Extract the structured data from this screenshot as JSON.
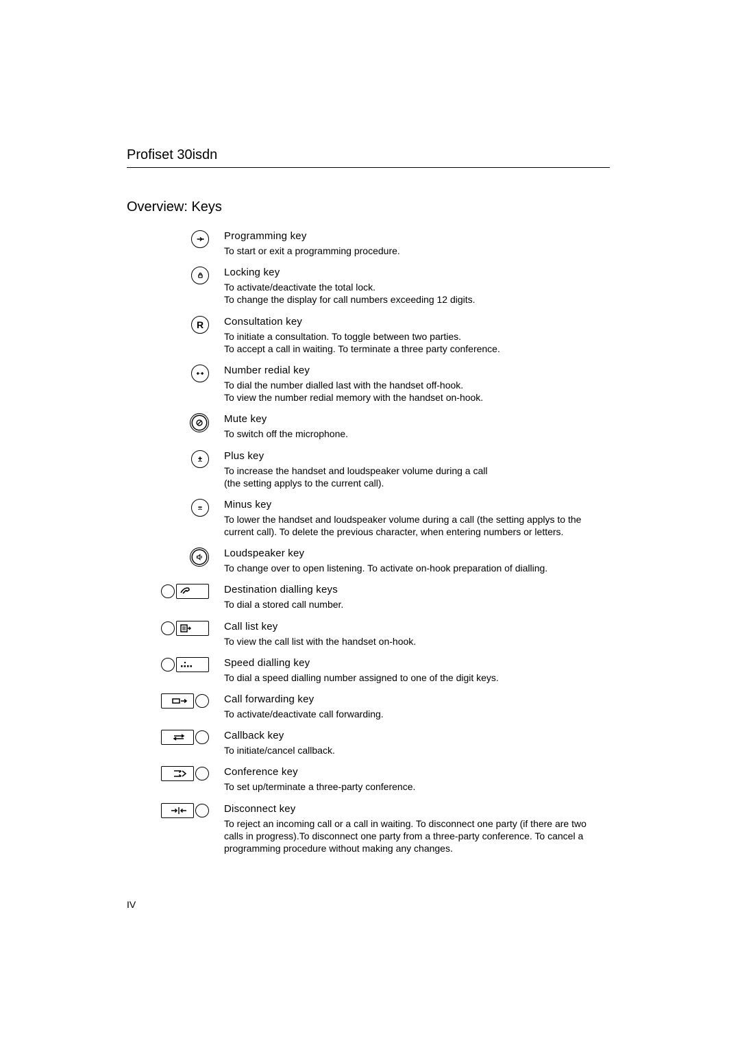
{
  "device_title": "Profiset 30isdn",
  "section_title": "Overview: Keys",
  "page_number": "IV",
  "keys": [
    {
      "name": "Programming key",
      "desc": "To start or exit a programming procedure."
    },
    {
      "name": "Locking key",
      "desc": "To activate/deactivate the total lock.\nTo change the display for call numbers exceeding 12 digits."
    },
    {
      "name": "Consultation key",
      "desc": "To initiate a consultation. To toggle between two parties.\nTo accept a call in waiting. To terminate a three party conference."
    },
    {
      "name": "Number redial key",
      "desc": "To dial the number dialled last with the handset off-hook.\nTo view the number redial memory with the handset on-hook."
    },
    {
      "name": "Mute key",
      "desc": "To switch off the microphone."
    },
    {
      "name": "Plus key",
      "desc": "To increase the handset and loudspeaker volume during a call\n(the setting applys to the current call)."
    },
    {
      "name": "Minus key",
      "desc": "To lower the  handset and loudspeaker volume during a call (the setting applys to the current call). To delete the previous character, when entering numbers or letters."
    },
    {
      "name": "Loudspeaker key",
      "desc": "To change over to open listening. To activate on-hook preparation of dialling."
    },
    {
      "name": "Destination dialling keys",
      "desc": "To dial a stored call number."
    },
    {
      "name": "Call list key",
      "desc": "To view the call list with the handset on-hook."
    },
    {
      "name": "Speed dialling key",
      "desc": "To dial a speed dialling number assigned to one of the digit keys."
    },
    {
      "name": "Call forwarding key",
      "desc": "To activate/deactivate call forwarding."
    },
    {
      "name": "Callback key",
      "desc": "To initiate/cancel callback."
    },
    {
      "name": "Conference key",
      "desc": "To set up/terminate a three-party conference."
    },
    {
      "name": "Disconnect key",
      "desc": "To reject an incoming call or a call in waiting. To disconnect one party (if there are two calls in progress).To disconnect one party from a three-party conference. To cancel a programming procedure without making any changes."
    }
  ]
}
